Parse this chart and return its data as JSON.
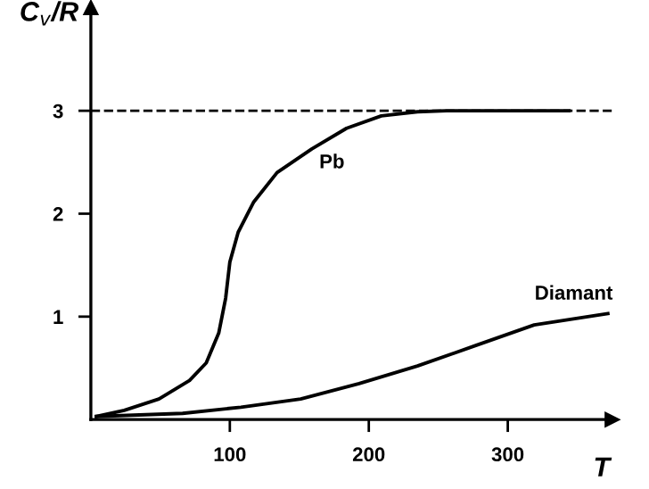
{
  "chart_data": {
    "type": "line",
    "xlabel": "T",
    "ylabel": "C$_{v}$/R",
    "xlim": [
      0,
      375
    ],
    "ylim": [
      0,
      4
    ],
    "xticks": [
      100,
      200,
      300
    ],
    "yticks": [
      1,
      2,
      3
    ],
    "grid": false,
    "legend": false,
    "marker": "none",
    "line_style": "solid",
    "series": [
      {
        "color": "#000000",
        "x": [
          4,
          24,
          49,
          71,
          83,
          92,
          97,
          100,
          106,
          117,
          134,
          159,
          184,
          209,
          235,
          256,
          344
        ],
        "values": [
          0.03,
          0.09,
          0.2,
          0.38,
          0.55,
          0.84,
          1.18,
          1.53,
          1.82,
          2.11,
          2.4,
          2.63,
          2.83,
          2.95,
          2.99,
          3.0,
          3.0
        ]
      },
      {
        "color": "#000000",
        "x": [
          4,
          66,
          108,
          151,
          193,
          235,
          277,
          319,
          372
        ],
        "values": [
          0.03,
          0.06,
          0.12,
          0.2,
          0.35,
          0.52,
          0.72,
          0.92,
          1.03
        ]
      }
    ],
    "ref_lines": [
      {
        "axis": "y",
        "value": 3,
        "line_style": "dashed",
        "color": "#000000"
      }
    ],
    "annotations": [
      {
        "text": "Pb",
        "x": 159,
        "y": 2.63
      },
      {
        "text": "Diamant",
        "x": 372,
        "y": 1.03
      }
    ]
  }
}
